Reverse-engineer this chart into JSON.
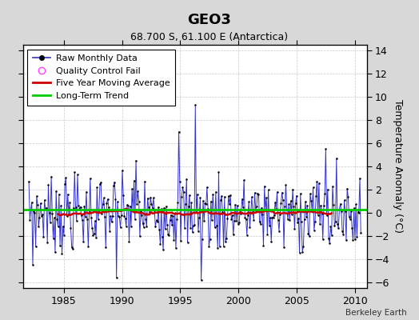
{
  "title": "GEO3",
  "subtitle": "68.700 S, 61.100 E (Antarctica)",
  "ylabel_right": "Temperature Anomaly (°C)",
  "attribution": "Berkeley Earth",
  "xlim": [
    1981.5,
    2011.0
  ],
  "ylim": [
    -6.5,
    14.5
  ],
  "yticks": [
    -6,
    -4,
    -2,
    0,
    2,
    4,
    6,
    8,
    10,
    12,
    14
  ],
  "xticks": [
    1985,
    1990,
    1995,
    2000,
    2005,
    2010
  ],
  "bg_color": "#d8d8d8",
  "plot_bg_color": "#ffffff",
  "raw_color": "#3333cc",
  "moving_avg_color": "#cc0000",
  "trend_color": "#00cc00",
  "qc_fail_color": "#ff44ff",
  "long_term_trend_val": 0.28,
  "title_fontsize": 13,
  "subtitle_fontsize": 9,
  "tick_fontsize": 9,
  "legend_fontsize": 8
}
